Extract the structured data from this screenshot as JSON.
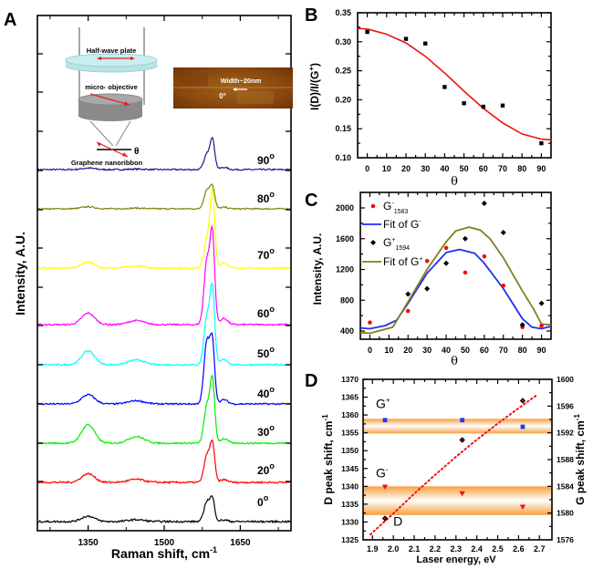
{
  "chart_data": [
    {
      "panel": "A",
      "type": "line",
      "xlabel": "Raman shift, cm",
      "xlabel_sup": "-1",
      "ylabel": "Intensity, A.U.",
      "xlim": [
        1250,
        1750
      ],
      "xticks": [
        1350,
        1500,
        1650
      ],
      "xminor_ticks": [
        1275,
        1425,
        1575,
        1725
      ],
      "yticks_shown": false,
      "peaks": {
        "D": 1350,
        "G": 1595
      },
      "series": [
        {
          "name": "90°",
          "label": "90",
          "color": "#1a1a8c",
          "baseline": 0.0,
          "g_peak": 1.0,
          "g_shoulder": 0.55,
          "d_peak": 0.05
        },
        {
          "name": "80°",
          "label": "80",
          "color": "#808000",
          "baseline": 0.0,
          "g_peak": 0.85,
          "g_shoulder": 0.8,
          "d_peak": 0.08
        },
        {
          "name": "70°",
          "label": "70",
          "color": "#ffff00",
          "baseline": 0.0,
          "g_peak": 2.4,
          "g_shoulder": 1.0,
          "d_peak": 0.2
        },
        {
          "name": "60°",
          "label": "60",
          "color": "#ff00ff",
          "baseline": 0.0,
          "g_peak": 2.9,
          "g_shoulder": 2.3,
          "d_peak": 0.38
        },
        {
          "name": "50°",
          "label": "50",
          "color": "#00ffff",
          "baseline": 0.0,
          "g_peak": 2.4,
          "g_shoulder": 1.7,
          "d_peak": 0.45
        },
        {
          "name": "40°",
          "label": "40",
          "color": "#0000ff",
          "baseline": 0.0,
          "g_peak": 1.9,
          "g_shoulder": 2.2,
          "d_peak": 0.3
        },
        {
          "name": "30°",
          "label": "30",
          "color": "#00ee00",
          "baseline": 0.0,
          "g_peak": 2.0,
          "g_shoulder": 1.3,
          "d_peak": 0.6
        },
        {
          "name": "20°",
          "label": "20",
          "color": "#ff0000",
          "baseline": 0.0,
          "g_peak": 1.1,
          "g_shoulder": 0.85,
          "d_peak": 0.25
        },
        {
          "name": "0°",
          "label": "0",
          "color": "#000000",
          "baseline": 0.0,
          "g_peak": 0.6,
          "g_shoulder": 0.6,
          "d_peak": 0.15
        }
      ],
      "inset_schematic": {
        "half_wave_plate": "Half-wave plate",
        "objective": "micro- objective",
        "sample": "Graphene nanoribbon",
        "angle_symbol": "θ"
      },
      "inset_image": {
        "width_label": "Width~20nm",
        "angle_label": "0°"
      }
    },
    {
      "panel": "B",
      "type": "scatter",
      "xlabel": "θ",
      "ylabel": "I(D)/I/(G",
      "ylabel_sup": "+",
      "ylabel_end": ")",
      "xlim": [
        -5,
        95
      ],
      "ylim": [
        0.1,
        0.35
      ],
      "xticks": [
        0,
        10,
        20,
        30,
        40,
        50,
        60,
        70,
        80,
        90
      ],
      "yticks": [
        "0.10",
        "0.15",
        "0.20",
        "0.25",
        "0.30",
        "0.35"
      ],
      "points": {
        "x": [
          0,
          20,
          30,
          40,
          50,
          60,
          70,
          90
        ],
        "y": [
          0.317,
          0.305,
          0.297,
          0.222,
          0.194,
          0.188,
          0.19,
          0.125
        ]
      },
      "fit": {
        "color": "#ee1111",
        "x": [
          -5,
          0,
          10,
          20,
          30,
          40,
          50,
          60,
          70,
          80,
          90,
          95
        ],
        "y": [
          0.323,
          0.322,
          0.313,
          0.298,
          0.275,
          0.246,
          0.215,
          0.185,
          0.16,
          0.141,
          0.132,
          0.131
        ]
      }
    },
    {
      "panel": "C",
      "type": "scatter",
      "xlabel": "θ",
      "ylabel": "Intensity, A.U.",
      "xlim": [
        -5,
        95
      ],
      "ylim": [
        300,
        2200
      ],
      "xticks": [
        0,
        10,
        20,
        30,
        40,
        50,
        60,
        70,
        80,
        90
      ],
      "yticks": [
        400,
        800,
        1200,
        1600,
        2000
      ],
      "legend": [
        {
          "label": "G",
          "sup": "-",
          "sub": "1583",
          "kind": "point",
          "color": "#ee1111"
        },
        {
          "label": "Fit of G",
          "sup": "-",
          "kind": "line",
          "color": "#1f2fee"
        },
        {
          "label": "G",
          "sup": "+",
          "sub": "1594",
          "kind": "point",
          "color": "#000000"
        },
        {
          "label": "Fit of G",
          "sup": "+",
          "kind": "line",
          "color": "#808020"
        }
      ],
      "series": [
        {
          "name": "G-1583",
          "color": "#ee1111",
          "x": [
            0,
            20,
            30,
            40,
            50,
            60,
            70,
            80,
            90
          ],
          "y": [
            510,
            660,
            1310,
            1480,
            1160,
            1370,
            990,
            450,
            470
          ]
        },
        {
          "name": "G+1594",
          "color": "#000000",
          "x": [
            20,
            30,
            40,
            50,
            60,
            70,
            80,
            90
          ],
          "y": [
            880,
            950,
            1280,
            1600,
            2060,
            1680,
            480,
            760
          ]
        },
        {
          "name": "Fit of G-",
          "color": "#1f2fee",
          "x": [
            -5,
            0,
            8,
            14,
            20,
            30,
            40,
            47,
            55,
            60,
            70,
            80,
            85,
            90,
            95
          ],
          "y": [
            440,
            430,
            470,
            540,
            760,
            1150,
            1420,
            1460,
            1410,
            1280,
            950,
            560,
            450,
            430,
            460
          ]
        },
        {
          "name": "Fit of G+",
          "color": "#808020",
          "x": [
            -5,
            0,
            12,
            20,
            30,
            40,
            45,
            52,
            58,
            63,
            70,
            80,
            86,
            90,
            95
          ],
          "y": [
            380,
            370,
            450,
            780,
            1200,
            1560,
            1700,
            1750,
            1710,
            1600,
            1350,
            920,
            680,
            490,
            480
          ]
        }
      ]
    },
    {
      "panel": "D",
      "type": "scatter",
      "xlabel": "Laser energy, eV",
      "ylabel": "D peak shift, cm",
      "ylabel_sup": "-1",
      "ylabel_right": "G peak shift, cm",
      "ylabel_right_sup": "-1",
      "xlim": [
        1.855,
        2.76
      ],
      "ylim_left": [
        1325,
        1370
      ],
      "ylim_right": [
        1576,
        1600
      ],
      "xticks": [
        "1.9",
        "2.0",
        "2.1",
        "2.2",
        "2.3",
        "2.4",
        "2.5",
        "2.6",
        "2.7"
      ],
      "yticks_left": [
        1325,
        1330,
        1335,
        1340,
        1345,
        1350,
        1355,
        1360,
        1365,
        1370
      ],
      "yticks_right": [
        1576,
        1580,
        1584,
        1588,
        1592,
        1596,
        1600
      ],
      "bands_right_axis": [
        {
          "name": "G+ band",
          "range": [
            1591.9,
            1594.1
          ],
          "color": "#f7a040"
        },
        {
          "name": "G- band",
          "range": [
            1579.7,
            1584.0
          ],
          "color": "#f7a040"
        }
      ],
      "annotations": [
        {
          "text": "G",
          "sup": "+",
          "x": 1.96,
          "y_left": 1363.2
        },
        {
          "text": "G",
          "sup": "-",
          "x": 1.96,
          "y_left": 1343.8
        },
        {
          "text": "D",
          "x": 2.03,
          "y_left": 1330.2
        }
      ],
      "series": [
        {
          "name": "D peak",
          "axis": "left",
          "marker": "diamond",
          "color": "#000000",
          "x": [
            1.96,
            2.33,
            2.62
          ],
          "y": [
            1331,
            1353,
            1364
          ]
        },
        {
          "name": "G+",
          "axis": "right",
          "marker": "square",
          "color": "#1a3fee",
          "x": [
            1.96,
            2.33,
            2.62
          ],
          "y": [
            1593.9,
            1593.9,
            1592.9
          ]
        },
        {
          "name": "G-",
          "axis": "right",
          "marker": "triangle-down",
          "color": "#ee1111",
          "x": [
            1.96,
            2.33,
            2.62
          ],
          "y": [
            1583.9,
            1582.9,
            1580.9
          ]
        },
        {
          "name": "D fit",
          "axis": "left",
          "marker": "dotted-line",
          "color": "#ee1111",
          "x": [
            1.89,
            2.0,
            2.1,
            2.2,
            2.3,
            2.4,
            2.5,
            2.6,
            2.69
          ],
          "y": [
            1326.5,
            1332.4,
            1337.9,
            1343.2,
            1348.3,
            1353.1,
            1357.6,
            1361.9,
            1365.7
          ]
        }
      ]
    }
  ],
  "panel_letters": [
    "A",
    "B",
    "C",
    "D"
  ]
}
